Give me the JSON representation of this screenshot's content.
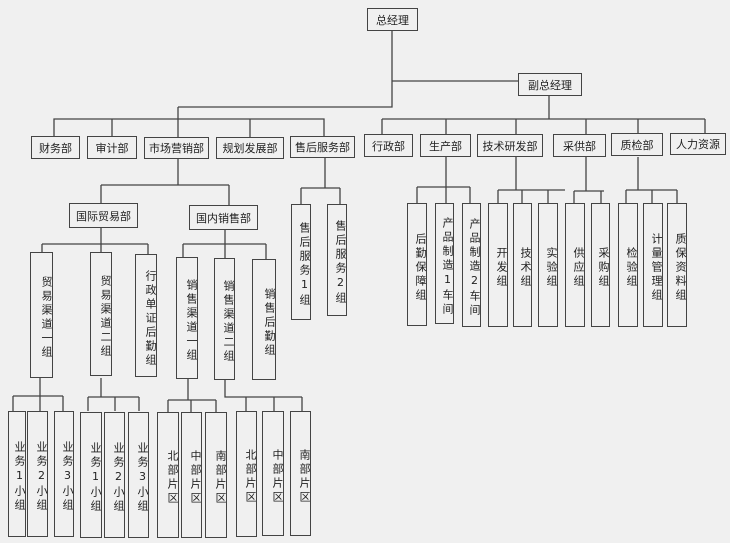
{
  "ceo": "总经理",
  "vice": "副总经理",
  "left_depts": [
    "财务部",
    "审计部",
    "市场营销部",
    "规划发展部",
    "售后服务部"
  ],
  "right_depts": [
    "行政部",
    "生产部",
    "技术研发部",
    "采供部",
    "质检部",
    "人力资源"
  ],
  "marketing": {
    "intl": {
      "name": "国际贸易部",
      "groups": [
        "贸易渠道一组",
        "贸易渠道二组",
        "行政单证后勤组"
      ],
      "sub1": [
        "业务1小组",
        "业务2小组",
        "业务3小组"
      ],
      "sub2": [
        "业务1小组",
        "业务2小组",
        "业务3小组"
      ]
    },
    "domestic": {
      "name": "国内销售部",
      "groups": [
        "销售渠道一组",
        "销售渠道二组",
        "销售后勤组"
      ],
      "sub1": [
        "北部片区",
        "中部片区",
        "南部片区"
      ],
      "sub2": [
        "北部片区",
        "中部片区",
        "南部片区"
      ]
    }
  },
  "after_sales_groups": [
    "售后服务1组",
    "售后服务2组"
  ],
  "production_groups": [
    "后勤保障组",
    "产品制造1车间",
    "产品制造2车间"
  ],
  "rnd_groups": [
    "开发组",
    "技术组",
    "实验组"
  ],
  "purchase_groups": [
    "供应组",
    "采购组"
  ],
  "qc_groups": [
    "检验组",
    "计量管理组",
    "质保资料组"
  ]
}
